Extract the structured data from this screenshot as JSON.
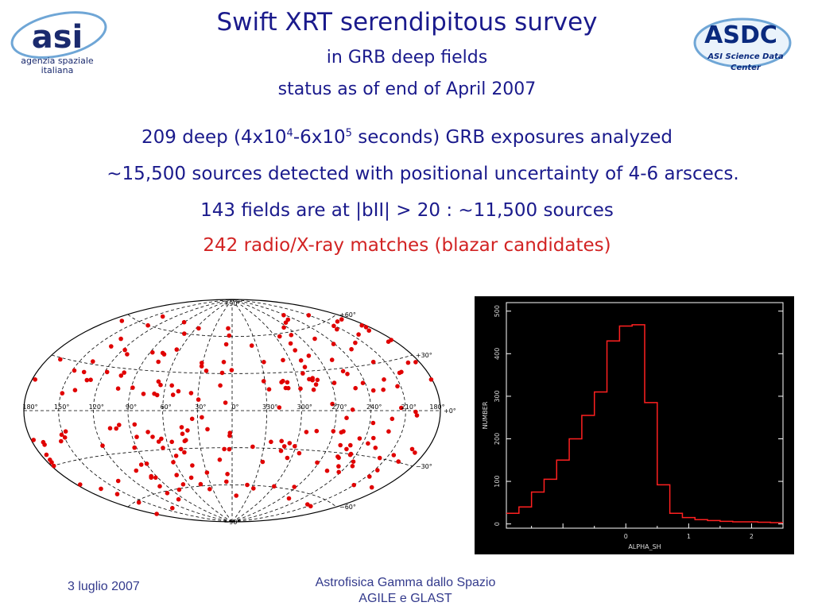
{
  "header": {
    "title": "Swift XRT serendipitous survey",
    "subtitle1": "in GRB deep fields",
    "subtitle2": "status as of end of April 2007"
  },
  "stats": {
    "line1_pre": "209 deep (4x10",
    "line1_sup1": "4",
    "line1_mid": "-6x10",
    "line1_sup2": "5",
    "line1_post": " seconds) GRB exposures analyzed",
    "line2": "~15,500 sources detected with positional uncertainty of 4-6 arscecs.",
    "line3": "143 fields are at |bII| > 20 :  ~11,500 sources",
    "line4": "242 radio/X-ray matches (blazar candidates)"
  },
  "logos": {
    "asi_mark": "asi",
    "asi_text1": "agenzia spaziale",
    "asi_text2": "italiana",
    "asdc_mark": "ASDC",
    "asdc_text1": "ASI Science Data",
    "asdc_text2": "Center"
  },
  "skymap": {
    "lat_labels": [
      "+90°",
      "+60°",
      "+30°",
      "+0°",
      "−30°",
      "−60°",
      "−90°"
    ],
    "lon_labels": [
      "180°",
      "150°",
      "120°",
      "90°",
      "60°",
      "30°",
      "0°",
      "330°",
      "300°",
      "270°",
      "240°",
      "210°",
      "180°"
    ],
    "point_color": "#e00000"
  },
  "chart_data": {
    "type": "histogram",
    "xlabel": "ALPHA_SH",
    "ylabel": "NUMBER",
    "xlim": [
      -1.9,
      2.5
    ],
    "ylim": [
      -10,
      520
    ],
    "xticks": [
      0,
      1,
      2
    ],
    "yticks": [
      0,
      100,
      200,
      300,
      400,
      500
    ],
    "bin_edges": [
      -1.9,
      -1.7,
      -1.5,
      -1.3,
      -1.1,
      -0.9,
      -0.7,
      -0.5,
      -0.3,
      -0.1,
      0.1,
      0.3,
      0.5,
      0.7,
      0.9,
      1.1,
      1.3,
      1.5,
      1.7,
      1.9,
      2.1,
      2.3,
      2.5
    ],
    "values": [
      25,
      40,
      75,
      105,
      150,
      200,
      255,
      310,
      430,
      465,
      468,
      285,
      92,
      25,
      15,
      10,
      8,
      6,
      5,
      5,
      4,
      3
    ],
    "line_color": "#ff2020",
    "background": "#000000"
  },
  "footer": {
    "date": "3 luglio 2007",
    "title1": "Astrofisica Gamma dallo Spazio",
    "title2": "AGILE e GLAST"
  }
}
